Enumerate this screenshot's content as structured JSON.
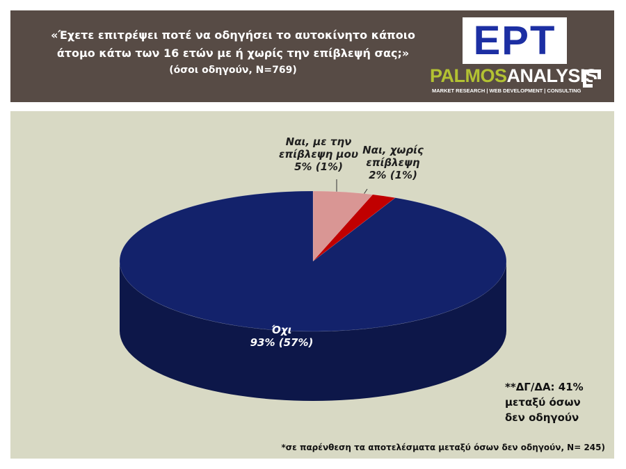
{
  "header": {
    "title_lines": [
      "«Έχετε επιτρέψει ποτέ να οδηγήσει το αυτοκίνητο κάποιο",
      "άτομο κάτω των 16 ετών με ή χωρίς την επίβλεψή σας;»"
    ],
    "subtitle": "(όσοι οδηγούν, Ν=769)"
  },
  "logo": {
    "broadcaster": "ΕΡΤ",
    "name_first": "PALMOS",
    "name_second": "ANALYSIS",
    "tagline": "MARKET RESEARCH | WEB DEVELOPMENT | CONSULTING"
  },
  "chart_data": {
    "type": "pie",
    "categories": [
      "Ναι, με την επίβλεψη μου",
      "Ναι, χωρίς επίβλεψη",
      "Όχι"
    ],
    "values": [
      5,
      2,
      93
    ],
    "value_labels": [
      "5% (1%)",
      "2% (1%)",
      "93% (57%)"
    ],
    "colors": [
      "#d99694",
      "#c00000",
      "#13226b"
    ]
  },
  "notes": {
    "dk_na": "**ΔΓ/ΔΑ: 41%\nμεταξύ όσων\nδεν οδηγούν",
    "footnote": "*σε παρένθεση τα αποτελέσματα μεταξύ όσων δεν οδηγούν, N= 245)"
  }
}
